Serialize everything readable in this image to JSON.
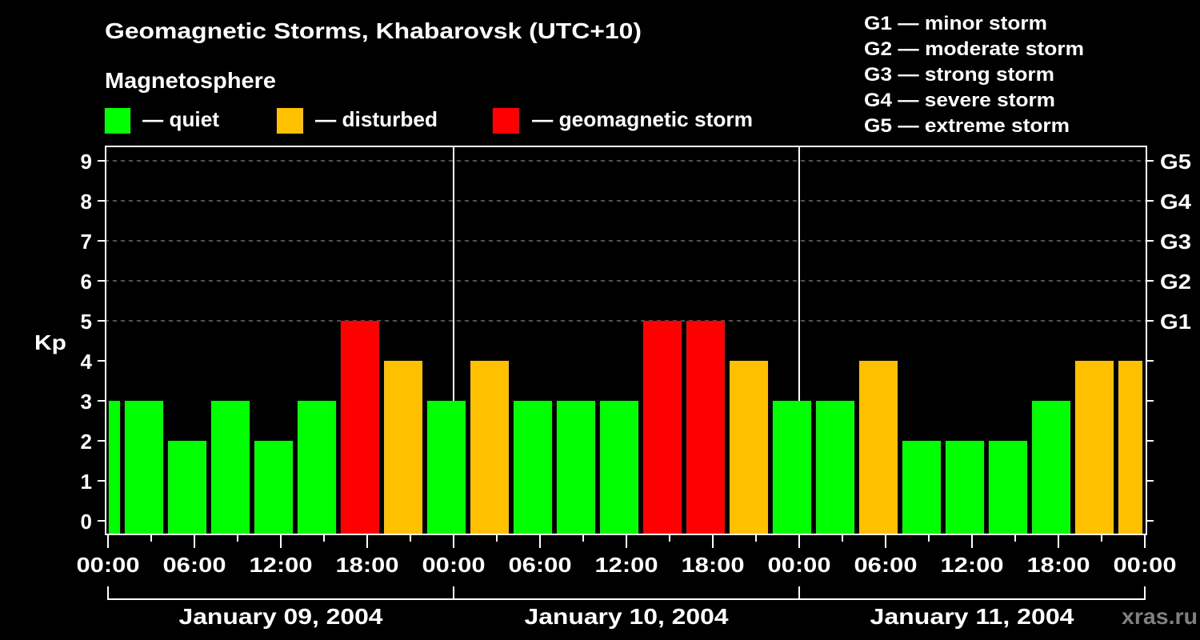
{
  "title": "Geomagnetic Storms, Khabarovsk (UTC+10)",
  "legend": {
    "heading": "Magnetosphere",
    "items": [
      {
        "key": "quiet",
        "label": "— quiet",
        "color": "#00FF00"
      },
      {
        "key": "disturbed",
        "label": "— disturbed",
        "color": "#FFC000"
      },
      {
        "key": "storm",
        "label": "— geomagnetic storm",
        "color": "#FF0000"
      }
    ]
  },
  "g_scale": [
    "G1 — minor storm",
    "G2 — moderate storm",
    "G3 — strong storm",
    "G4 — severe storm",
    "G5 — extreme storm"
  ],
  "watermark": "xras.ru",
  "colors": {
    "background": "#000000",
    "axis": "#FFFFFF",
    "grid": "#A0A0A0",
    "watermark": "#808080"
  },
  "chart_data": {
    "type": "bar",
    "title": "Geomagnetic Storms, Khabarovsk (UTC+10)",
    "xlabel": "",
    "ylabel": "Kp",
    "ylim": [
      0,
      9
    ],
    "grid": {
      "on": true,
      "style": "dashed",
      "levels": [
        5,
        6,
        7,
        8,
        9
      ]
    },
    "legend_position": "top",
    "yticks": [
      "0",
      "1",
      "2",
      "3",
      "4",
      "5",
      "6",
      "7",
      "8",
      "9"
    ],
    "right_ticks": [
      {
        "level": 5,
        "label": "G1"
      },
      {
        "level": 6,
        "label": "G2"
      },
      {
        "level": 7,
        "label": "G3"
      },
      {
        "level": 8,
        "label": "G4"
      },
      {
        "level": 9,
        "label": "G5"
      }
    ],
    "xticks": [
      "00:00",
      "06:00",
      "12:00",
      "18:00",
      "00:00",
      "06:00",
      "12:00",
      "18:00",
      "00:00",
      "06:00",
      "12:00",
      "18:00",
      "00:00"
    ],
    "days": [
      "January 09, 2004",
      "January 10, 2004",
      "January 11, 2004"
    ],
    "categories": [
      "Jan 09 00:00–01:00",
      "Jan 09 01:00–04:00",
      "Jan 09 04:00–07:00",
      "Jan 09 07:00–10:00",
      "Jan 09 10:00–13:00",
      "Jan 09 13:00–16:00",
      "Jan 09 16:00–19:00",
      "Jan 09 19:00–22:00",
      "Jan 09 22:00–01:00",
      "Jan 10 01:00–04:00",
      "Jan 10 04:00–07:00",
      "Jan 10 07:00–10:00",
      "Jan 10 10:00–13:00",
      "Jan 10 13:00–16:00",
      "Jan 10 16:00–19:00",
      "Jan 10 19:00–22:00",
      "Jan 10 22:00–01:00",
      "Jan 11 01:00–04:00",
      "Jan 11 04:00–07:00",
      "Jan 11 07:00–10:00",
      "Jan 11 10:00–13:00",
      "Jan 11 13:00–16:00",
      "Jan 11 16:00–19:00",
      "Jan 11 19:00–22:00",
      "Jan 11 22:00–00:00"
    ],
    "values": [
      3,
      3,
      2,
      3,
      2,
      3,
      5,
      4,
      3,
      4,
      3,
      3,
      3,
      5,
      5,
      4,
      3,
      3,
      4,
      2,
      2,
      2,
      3,
      4,
      4
    ],
    "bars": [
      {
        "start_h": 0,
        "end_h": 1,
        "kp": 3,
        "status": "quiet"
      },
      {
        "start_h": 1,
        "end_h": 4,
        "kp": 3,
        "status": "quiet"
      },
      {
        "start_h": 4,
        "end_h": 7,
        "kp": 2,
        "status": "quiet"
      },
      {
        "start_h": 7,
        "end_h": 10,
        "kp": 3,
        "status": "quiet"
      },
      {
        "start_h": 10,
        "end_h": 13,
        "kp": 2,
        "status": "quiet"
      },
      {
        "start_h": 13,
        "end_h": 16,
        "kp": 3,
        "status": "quiet"
      },
      {
        "start_h": 16,
        "end_h": 19,
        "kp": 5,
        "status": "storm"
      },
      {
        "start_h": 19,
        "end_h": 22,
        "kp": 4,
        "status": "disturbed"
      },
      {
        "start_h": 22,
        "end_h": 25,
        "kp": 3,
        "status": "quiet"
      },
      {
        "start_h": 25,
        "end_h": 28,
        "kp": 4,
        "status": "disturbed"
      },
      {
        "start_h": 28,
        "end_h": 31,
        "kp": 3,
        "status": "quiet"
      },
      {
        "start_h": 31,
        "end_h": 34,
        "kp": 3,
        "status": "quiet"
      },
      {
        "start_h": 34,
        "end_h": 37,
        "kp": 3,
        "status": "quiet"
      },
      {
        "start_h": 37,
        "end_h": 40,
        "kp": 5,
        "status": "storm"
      },
      {
        "start_h": 40,
        "end_h": 43,
        "kp": 5,
        "status": "storm"
      },
      {
        "start_h": 43,
        "end_h": 46,
        "kp": 4,
        "status": "disturbed"
      },
      {
        "start_h": 46,
        "end_h": 49,
        "kp": 3,
        "status": "quiet"
      },
      {
        "start_h": 49,
        "end_h": 52,
        "kp": 3,
        "status": "quiet"
      },
      {
        "start_h": 52,
        "end_h": 55,
        "kp": 4,
        "status": "disturbed"
      },
      {
        "start_h": 55,
        "end_h": 58,
        "kp": 2,
        "status": "quiet"
      },
      {
        "start_h": 58,
        "end_h": 61,
        "kp": 2,
        "status": "quiet"
      },
      {
        "start_h": 61,
        "end_h": 64,
        "kp": 2,
        "status": "quiet"
      },
      {
        "start_h": 64,
        "end_h": 67,
        "kp": 3,
        "status": "quiet"
      },
      {
        "start_h": 67,
        "end_h": 70,
        "kp": 4,
        "status": "disturbed"
      },
      {
        "start_h": 70,
        "end_h": 72,
        "kp": 4,
        "status": "disturbed"
      }
    ]
  }
}
